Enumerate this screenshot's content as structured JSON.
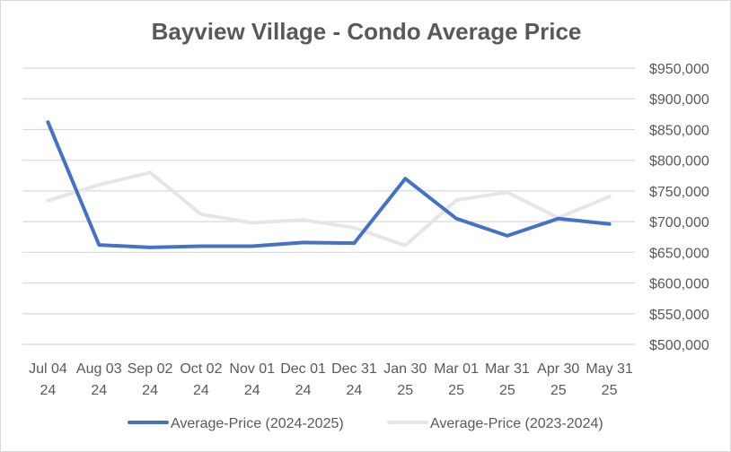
{
  "chart_data": {
    "type": "line",
    "title": "Bayview Village - Condo Average Price",
    "xlabel": "",
    "ylabel": "",
    "categories": [
      [
        "Jul 04",
        "24"
      ],
      [
        "Aug 03",
        "24"
      ],
      [
        "Sep 02",
        "24"
      ],
      [
        "Oct 02",
        "24"
      ],
      [
        "Nov 01",
        "24"
      ],
      [
        "Dec 01",
        "24"
      ],
      [
        "Dec 31",
        "24"
      ],
      [
        "Jan 30",
        "25"
      ],
      [
        "Mar 01",
        "25"
      ],
      [
        "Mar 31",
        "25"
      ],
      [
        "Apr 30",
        "25"
      ],
      [
        "May 31",
        "25"
      ]
    ],
    "ylim": [
      500000,
      950000
    ],
    "yticks": [
      500000,
      550000,
      600000,
      650000,
      700000,
      750000,
      800000,
      850000,
      900000,
      950000
    ],
    "ytick_labels": [
      "$500,000",
      "$550,000",
      "$600,000",
      "$650,000",
      "$700,000",
      "$750,000",
      "$800,000",
      "$850,000",
      "$900,000",
      "$950,000"
    ],
    "grid": true,
    "legend": "bottom",
    "series": [
      {
        "name": "Average-Price (2024-2025)",
        "color": "#4472c4",
        "values": [
          862000,
          662000,
          658000,
          660000,
          660000,
          666000,
          665000,
          770000,
          705000,
          677000,
          705000,
          696000
        ]
      },
      {
        "name": "Average-Price (2023-2024)",
        "color": "#e6e6e6",
        "values": [
          734000,
          760000,
          780000,
          712000,
          698000,
          703000,
          690000,
          661000,
          735000,
          748000,
          706000,
          741000
        ]
      }
    ]
  }
}
